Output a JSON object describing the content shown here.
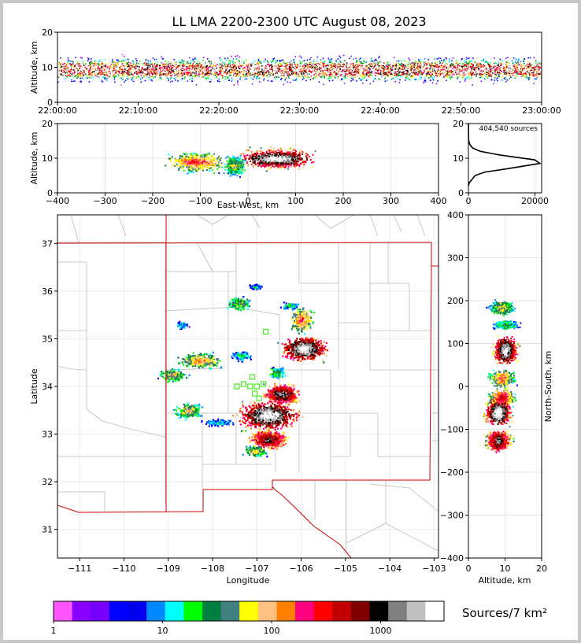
{
  "title": "LL LMA 2200-2300 UTC August 08, 2023",
  "chart_data": [
    {
      "id": "time-altitude",
      "type": "heatmap",
      "ylabel": "Altitude, km",
      "ylim": [
        0,
        20
      ],
      "yticks": [
        "0",
        "10",
        "20"
      ],
      "xticks": [
        "22:00:00",
        "22:10:00",
        "22:20:00",
        "22:30:00",
        "22:40:00",
        "22:50:00",
        "23:00:00"
      ],
      "xlim": [
        "22:00:00",
        "23:00:00"
      ],
      "band_center_km": 9.5
    },
    {
      "id": "ew-altitude",
      "type": "heatmap",
      "xlabel": "East-West, km",
      "ylabel": "Altitude, km",
      "xlim": [
        -400,
        400
      ],
      "ylim": [
        0,
        20
      ],
      "xticks": [
        "−400",
        "−300",
        "−200",
        "−100",
        "0",
        "100",
        "200",
        "300",
        "400"
      ],
      "yticks": [
        "0",
        "10",
        "20"
      ],
      "clusters": [
        {
          "x_km": -110,
          "z_km": 9,
          "width_km": 90,
          "intensity": 0.65
        },
        {
          "x_km": 60,
          "z_km": 10,
          "width_km": 110,
          "intensity": 1.0
        },
        {
          "x_km": -30,
          "z_km": 8,
          "width_km": 30,
          "intensity": 0.5
        }
      ]
    },
    {
      "id": "altitude-histogram",
      "type": "line",
      "annotation": "404,540 sources",
      "xlim": [
        0,
        22000
      ],
      "ylim": [
        0,
        20
      ],
      "xticks": [
        "0",
        "20000"
      ],
      "yticks": [
        "0",
        "10",
        "20"
      ],
      "x": [
        0,
        300,
        1200,
        2000,
        5000,
        12000,
        21500,
        20000,
        9000,
        3500,
        1200,
        400,
        100,
        20,
        0
      ],
      "y": [
        2,
        3,
        4,
        5,
        6,
        7,
        8.5,
        9.5,
        11,
        12,
        13,
        14,
        15,
        17,
        20
      ]
    },
    {
      "id": "plan-view",
      "type": "heatmap",
      "xlabel": "Longitude",
      "ylabel": "Latitude",
      "xlim": [
        -111.5,
        -102.9
      ],
      "ylim": [
        30.4,
        37.6
      ],
      "xticks": [
        "−111",
        "−110",
        "−109",
        "−108",
        "−107",
        "−106",
        "−105",
        "−104",
        "−103"
      ],
      "yticks": [
        "31",
        "32",
        "33",
        "34",
        "35",
        "36",
        "37"
      ],
      "cells": [
        {
          "lon": -107.4,
          "lat": 35.75,
          "w": 0.35,
          "h": 0.18,
          "intensity": 0.45
        },
        {
          "lon": -108.7,
          "lat": 35.3,
          "w": 0.2,
          "h": 0.1,
          "intensity": 0.3
        },
        {
          "lon": -106.0,
          "lat": 35.4,
          "w": 0.35,
          "h": 0.35,
          "intensity": 0.6
        },
        {
          "lon": -105.95,
          "lat": 34.8,
          "w": 0.65,
          "h": 0.35,
          "intensity": 0.95
        },
        {
          "lon": -108.3,
          "lat": 34.55,
          "w": 0.7,
          "h": 0.22,
          "intensity": 0.55
        },
        {
          "lon": -108.9,
          "lat": 34.25,
          "w": 0.4,
          "h": 0.18,
          "intensity": 0.5
        },
        {
          "lon": -107.35,
          "lat": 34.65,
          "w": 0.3,
          "h": 0.15,
          "intensity": 0.35
        },
        {
          "lon": -108.55,
          "lat": 33.5,
          "w": 0.4,
          "h": 0.22,
          "intensity": 0.5
        },
        {
          "lon": -107.9,
          "lat": 33.25,
          "w": 0.5,
          "h": 0.1,
          "intensity": 0.3
        },
        {
          "lon": -106.45,
          "lat": 33.85,
          "w": 0.55,
          "h": 0.3,
          "intensity": 0.85
        },
        {
          "lon": -106.75,
          "lat": 33.4,
          "w": 0.9,
          "h": 0.4,
          "intensity": 0.95
        },
        {
          "lon": -106.75,
          "lat": 32.9,
          "w": 0.6,
          "h": 0.3,
          "intensity": 0.8
        },
        {
          "lon": -107.05,
          "lat": 32.65,
          "w": 0.35,
          "h": 0.15,
          "intensity": 0.5
        },
        {
          "lon": -106.55,
          "lat": 34.3,
          "w": 0.25,
          "h": 0.18,
          "intensity": 0.4
        },
        {
          "lon": -106.25,
          "lat": 35.7,
          "w": 0.3,
          "h": 0.1,
          "intensity": 0.35
        },
        {
          "lon": -107.05,
          "lat": 36.1,
          "w": 0.2,
          "h": 0.1,
          "intensity": 0.3
        }
      ],
      "stations": [
        {
          "lon": -106.8,
          "lat": 35.15
        },
        {
          "lon": -107.1,
          "lat": 34.2
        },
        {
          "lon": -107.3,
          "lat": 34.05
        },
        {
          "lon": -107.15,
          "lat": 34.0
        },
        {
          "lon": -107.0,
          "lat": 34.0
        },
        {
          "lon": -106.85,
          "lat": 34.05
        },
        {
          "lon": -107.05,
          "lat": 33.85
        },
        {
          "lon": -107.45,
          "lat": 34.0
        },
        {
          "lon": -106.95,
          "lat": 33.75
        }
      ],
      "state_line_color": "#cc0000",
      "county_line_color": "#bbbbbb"
    },
    {
      "id": "ns-altitude",
      "type": "heatmap",
      "xlabel": "Altitude, km",
      "ylabel": "North-South, km",
      "xlim": [
        0,
        20
      ],
      "ylim": [
        -400,
        400
      ],
      "xticks": [
        "0",
        "10",
        "20"
      ],
      "yticks": [
        "400",
        "300",
        "200",
        "100",
        "0",
        "−100",
        "−200",
        "−300",
        "−400"
      ],
      "clusters": [
        {
          "y_km": 185,
          "z_km": 9,
          "height_km": 25,
          "intensity": 0.5
        },
        {
          "y_km": 145,
          "z_km": 10,
          "height_km": 15,
          "intensity": 0.4
        },
        {
          "y_km": 85,
          "z_km": 10,
          "height_km": 45,
          "intensity": 0.95
        },
        {
          "y_km": 20,
          "z_km": 9,
          "height_km": 30,
          "intensity": 0.6
        },
        {
          "y_km": -25,
          "z_km": 9,
          "height_km": 30,
          "intensity": 0.7
        },
        {
          "y_km": -60,
          "z_km": 8,
          "height_km": 40,
          "intensity": 1.0
        },
        {
          "y_km": -125,
          "z_km": 8,
          "height_km": 35,
          "intensity": 0.85
        }
      ]
    }
  ],
  "colorbar": {
    "label": "Sources/7 km²",
    "tick_labels": [
      "1",
      "10",
      "100",
      "1000"
    ],
    "colors": [
      "#ff55ff",
      "#8800ff",
      "#7700ff",
      "#0000ff",
      "#0000ee",
      "#0088ff",
      "#00ffff",
      "#00ff00",
      "#008040",
      "#408080",
      "#ffff00",
      "#ffc080",
      "#ff8000",
      "#ff0080",
      "#ff0000",
      "#c00000",
      "#800000",
      "#000000",
      "#808080",
      "#c0c0c0",
      "#ffffff"
    ]
  }
}
